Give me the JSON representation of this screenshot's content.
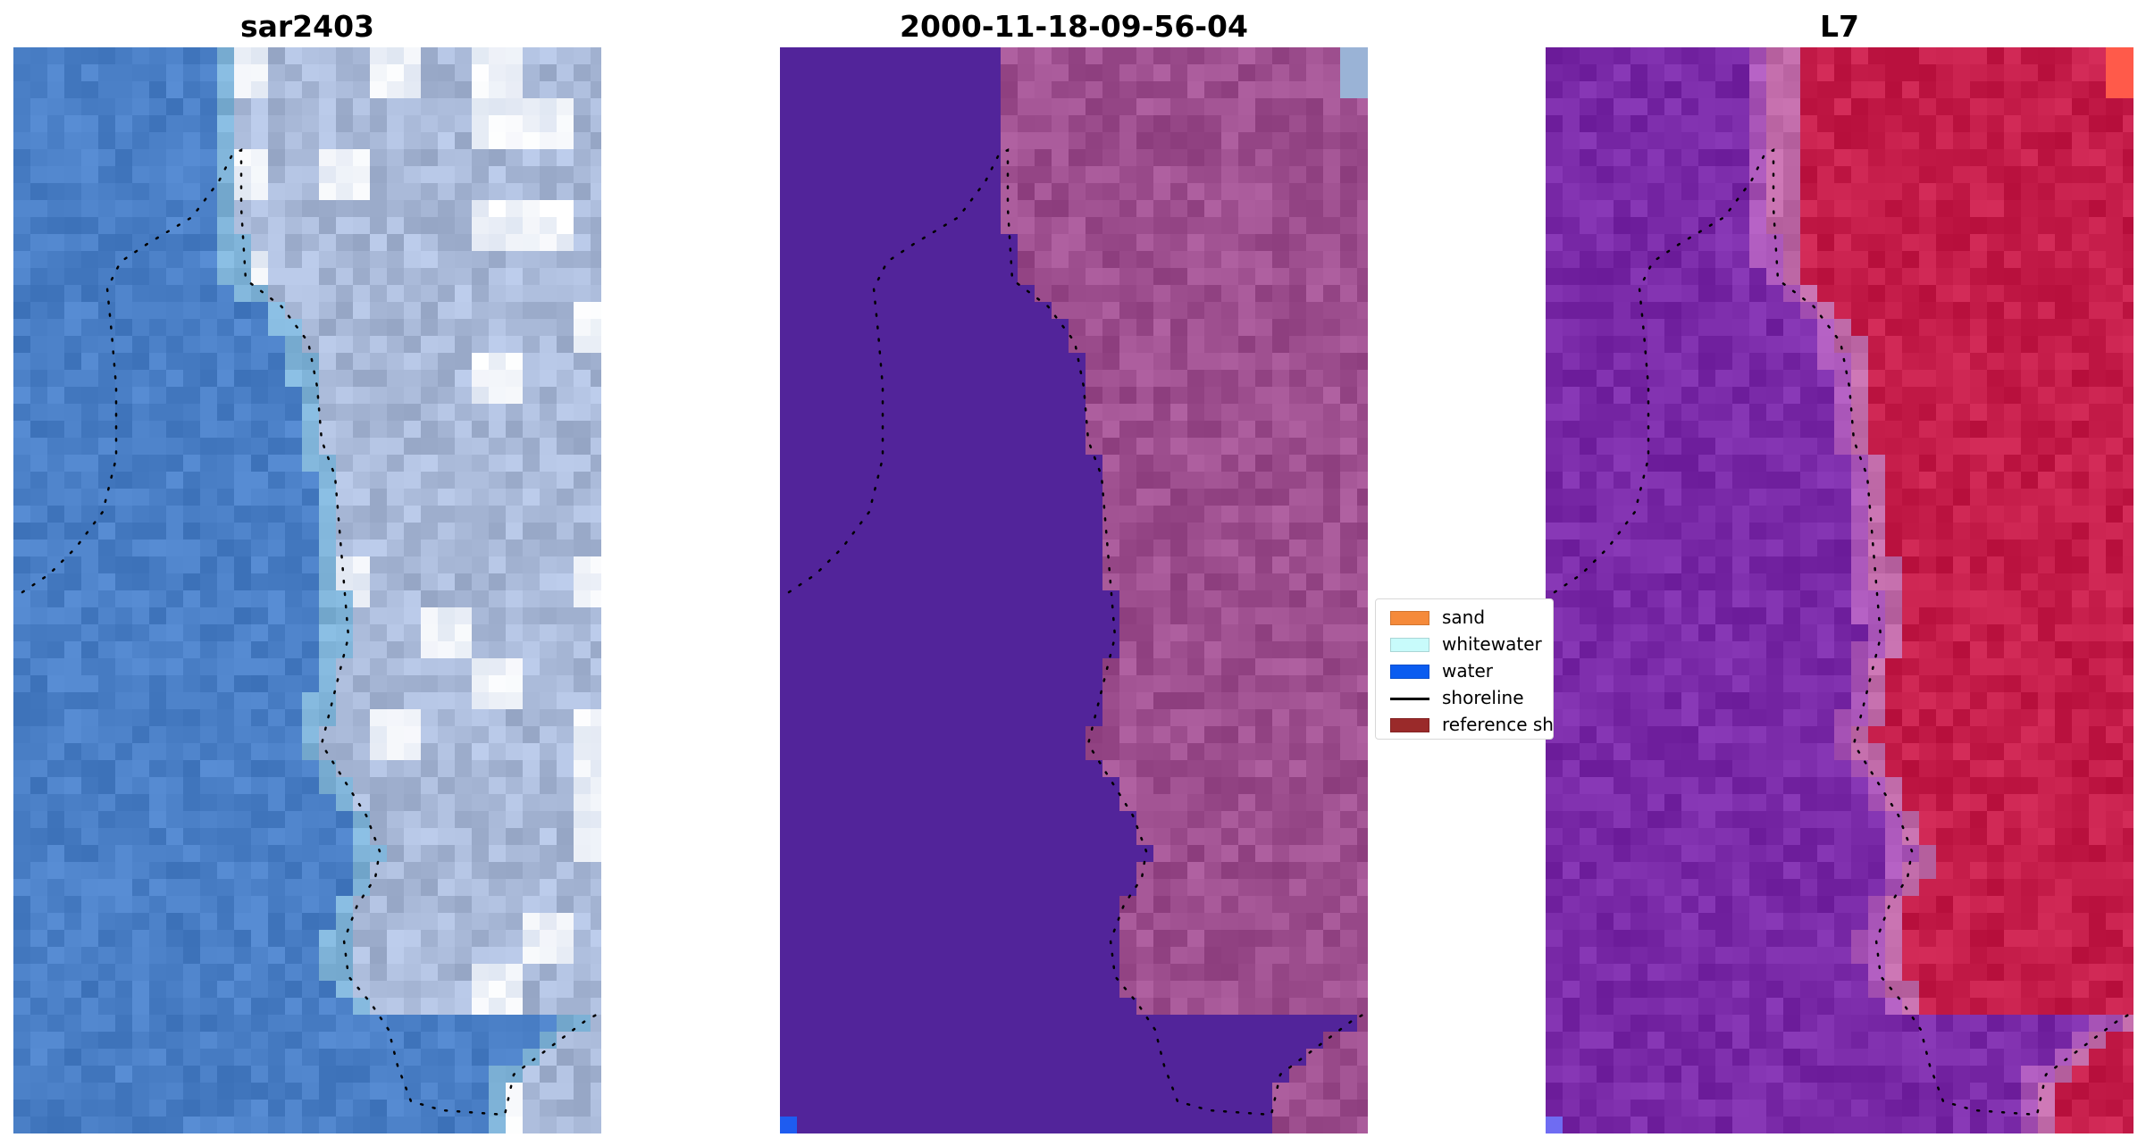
{
  "panels": [
    {
      "title": "sar2403",
      "style": "rgb",
      "water_color": "#4a7fc6",
      "land_color": "#a9b9d8"
    },
    {
      "title": "2000-11-18-09-56-04",
      "style": "classified",
      "water_color": "#52249a",
      "land_color": "#9e4f8f"
    },
    {
      "title": "L7",
      "style": "index",
      "water_color": "#7a2aa8",
      "land_color": "#c51d4a"
    }
  ],
  "legend": {
    "items": [
      {
        "label": "sand",
        "color": "#f58a3a",
        "kind": "patch"
      },
      {
        "label": "whitewater",
        "color": "#c8fbfb",
        "kind": "patch"
      },
      {
        "label": "water",
        "color": "#0a5cf0",
        "kind": "patch"
      },
      {
        "label": "shoreline",
        "color": "#000000",
        "kind": "line"
      },
      {
        "label": "reference shoreline",
        "color": "#9a2a2a",
        "kind": "patch"
      }
    ]
  }
}
